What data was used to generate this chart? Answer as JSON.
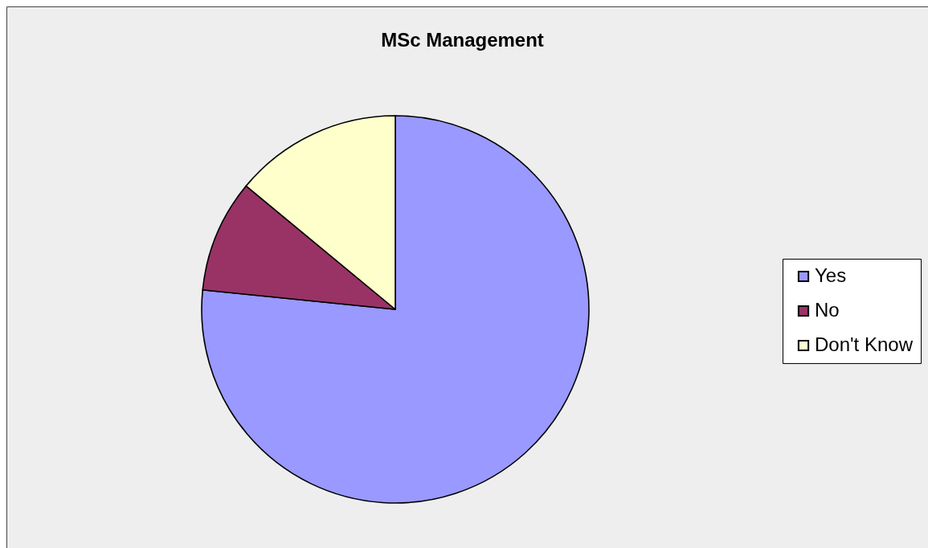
{
  "chart_data": {
    "type": "pie",
    "title": "MSc Management",
    "categories": [
      "Yes",
      "No",
      "Don't Know"
    ],
    "values": [
      76.6,
      9.4,
      14.0
    ],
    "colors": [
      "#9999ff",
      "#993366",
      "#ffffcc"
    ],
    "legend": "right"
  }
}
